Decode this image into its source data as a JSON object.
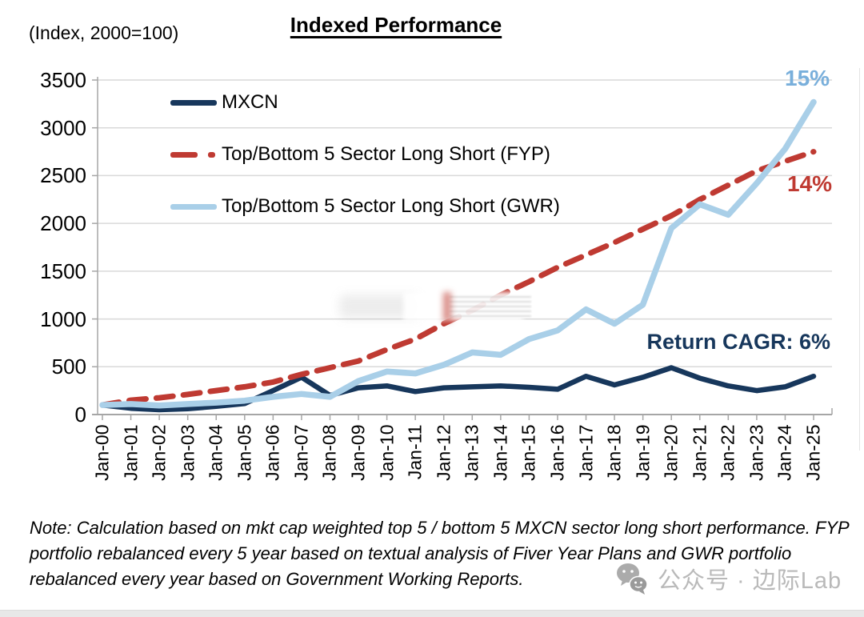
{
  "header": {
    "index_label": "(Index, 2000=100)",
    "title": "Indexed Performance"
  },
  "chart_data": {
    "type": "line",
    "title": "Indexed Performance",
    "y_axis_note": "(Index, 2000=100)",
    "x_labels": [
      "Jan-00",
      "Jan-01",
      "Jan-02",
      "Jan-03",
      "Jan-04",
      "Jan-05",
      "Jan-06",
      "Jan-07",
      "Jan-08",
      "Jan-09",
      "Jan-10",
      "Jan-11",
      "Jan-12",
      "Jan-13",
      "Jan-14",
      "Jan-15",
      "Jan-16",
      "Jan-17",
      "Jan-18",
      "Jan-19",
      "Jan-20",
      "Jan-21",
      "Jan-22",
      "Jan-23",
      "Jan-24",
      "Jan-25"
    ],
    "y_ticks": [
      0,
      500,
      1000,
      1500,
      2000,
      2500,
      3000,
      3500
    ],
    "ylim": [
      0,
      3500
    ],
    "grid": true,
    "grid_color": "#d9d9d9",
    "axis_color": "#a6a6a6",
    "legend_position": "top-left-inside",
    "series": [
      {
        "name": "MXCN",
        "color": "#17375c",
        "style": "solid",
        "stroke_width": 6.5,
        "values": [
          100,
          65,
          50,
          60,
          85,
          115,
          250,
          390,
          200,
          280,
          300,
          240,
          280,
          290,
          300,
          285,
          265,
          400,
          310,
          390,
          490,
          380,
          300,
          250,
          290,
          400
        ]
      },
      {
        "name": "Top/Bottom 5 Sector Long Short (FYP)",
        "color": "#bf3a32",
        "style": "dashed",
        "stroke_width": 7,
        "values": [
          100,
          150,
          175,
          210,
          250,
          290,
          340,
          420,
          490,
          560,
          680,
          790,
          950,
          1090,
          1250,
          1390,
          1540,
          1670,
          1800,
          1940,
          2080,
          2250,
          2400,
          2550,
          2650,
          2750
        ]
      },
      {
        "name": "Top/Bottom 5 Sector Long Short (GWR)",
        "color": "#a9cfe8",
        "style": "solid",
        "stroke_width": 7.5,
        "values": [
          100,
          110,
          95,
          110,
          125,
          145,
          185,
          215,
          185,
          350,
          450,
          430,
          520,
          650,
          625,
          790,
          880,
          1100,
          950,
          1150,
          1950,
          2200,
          2090,
          2420,
          2780,
          3270
        ]
      }
    ],
    "annotations": [
      {
        "text": "15%",
        "color": "#79afdb",
        "refers_to": "Top/Bottom 5 Sector Long Short (GWR)"
      },
      {
        "text": "14%",
        "color": "#bf3a32",
        "refers_to": "Top/Bottom 5 Sector Long Short (FYP)"
      },
      {
        "text": "Return CAGR: 6%",
        "color": "#17375c",
        "refers_to": "MXCN"
      }
    ]
  },
  "note": {
    "lines": [
      "Note: Calculation based on mkt cap weighted top 5 / bottom 5 MXCN sector long short performance. FYP",
      "portfolio rebalanced every 5 year based on textual analysis of Fiver Year Plans and GWR portfolio",
      "rebalanced every year based on Government Working Reports."
    ]
  },
  "watermark": {
    "text": "公众号 · 边际Lab"
  }
}
